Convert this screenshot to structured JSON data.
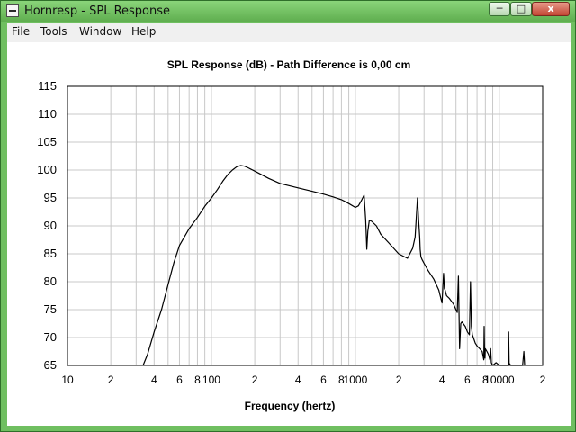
{
  "window": {
    "title": "Hornresp - SPL Response",
    "minimize_label": "─",
    "maximize_label": "□",
    "close_label": "x"
  },
  "menu": {
    "items": [
      {
        "label": "File"
      },
      {
        "label": "Tools"
      },
      {
        "label": "Window"
      },
      {
        "label": "Help"
      }
    ]
  },
  "chart_data": {
    "type": "line",
    "title": "SPL Response (dB) - Path Difference is 0,00 cm",
    "xlabel": "Frequency (hertz)",
    "ylabel": "",
    "xscale": "log",
    "xlim": [
      10,
      20000
    ],
    "ylim": [
      65,
      115
    ],
    "grid": true,
    "x_tick_labels": [
      "10",
      "2",
      "4",
      "6",
      "8",
      "100",
      "2",
      "4",
      "6",
      "8",
      "1000",
      "2",
      "4",
      "6",
      "8",
      "10000",
      "2"
    ],
    "y_tick_labels": [
      "115",
      "110",
      "105",
      "100",
      "95",
      "90",
      "85",
      "80",
      "75",
      "70",
      "65"
    ],
    "series": [
      {
        "values_x": [
          33.5,
          36,
          40,
          45,
          50,
          55,
          60,
          70,
          80,
          90,
          100,
          110,
          120,
          130,
          140,
          150,
          160,
          170,
          180,
          200,
          250,
          300,
          400,
          500,
          600,
          700,
          800,
          900,
          1000,
          1050,
          1100,
          1150,
          1180,
          1200,
          1220,
          1250,
          1300,
          1400,
          1500,
          1700,
          2000,
          2300,
          2500,
          2600,
          2700,
          2750,
          2800,
          2820,
          2850,
          2900,
          3000,
          3200,
          3500,
          3800,
          4000,
          4050,
          4100,
          4150,
          4200,
          4300,
          4500,
          4800,
          5000,
          5100,
          5200,
          5250,
          5300,
          5400,
          5500,
          5800,
          6000,
          6200,
          6300,
          6400,
          6500,
          6600,
          6800,
          7000,
          7300,
          7600,
          7800,
          7850,
          7900,
          7950,
          8000,
          8200,
          8400,
          8600,
          8700,
          8800,
          8900,
          9000,
          9500,
          10000,
          11000,
          11500,
          11600,
          11700,
          11800,
          12000,
          13000,
          14000,
          14500,
          14800,
          15000
        ],
        "values_y": [
          65,
          67,
          71,
          75,
          79.5,
          83.5,
          86.5,
          89.5,
          91.5,
          93.5,
          95,
          96.5,
          98,
          99.2,
          100,
          100.6,
          100.8,
          100.7,
          100.4,
          99.8,
          98.5,
          97.6,
          96.8,
          96.2,
          95.7,
          95.2,
          94.7,
          94,
          93.3,
          93.6,
          94.5,
          95.5,
          91,
          85.8,
          89,
          91,
          90.8,
          90,
          88.5,
          87,
          85,
          84.2,
          86,
          88,
          95,
          91,
          88,
          85.8,
          84.5,
          84,
          83.3,
          82,
          80.5,
          78.5,
          76.2,
          79,
          81.5,
          78.8,
          78.5,
          77.5,
          77,
          76,
          75,
          74.5,
          81,
          74,
          68,
          72.5,
          72.8,
          72,
          71,
          70.5,
          80,
          72,
          70.5,
          70,
          69,
          68.5,
          68,
          67.5,
          66,
          72,
          67,
          66.3,
          68,
          67.5,
          67,
          66,
          68,
          65.5,
          65.2,
          65,
          65.5,
          65,
          65,
          65,
          71,
          65,
          65.3,
          65,
          65,
          65,
          65,
          67.5,
          65
        ]
      }
    ]
  }
}
